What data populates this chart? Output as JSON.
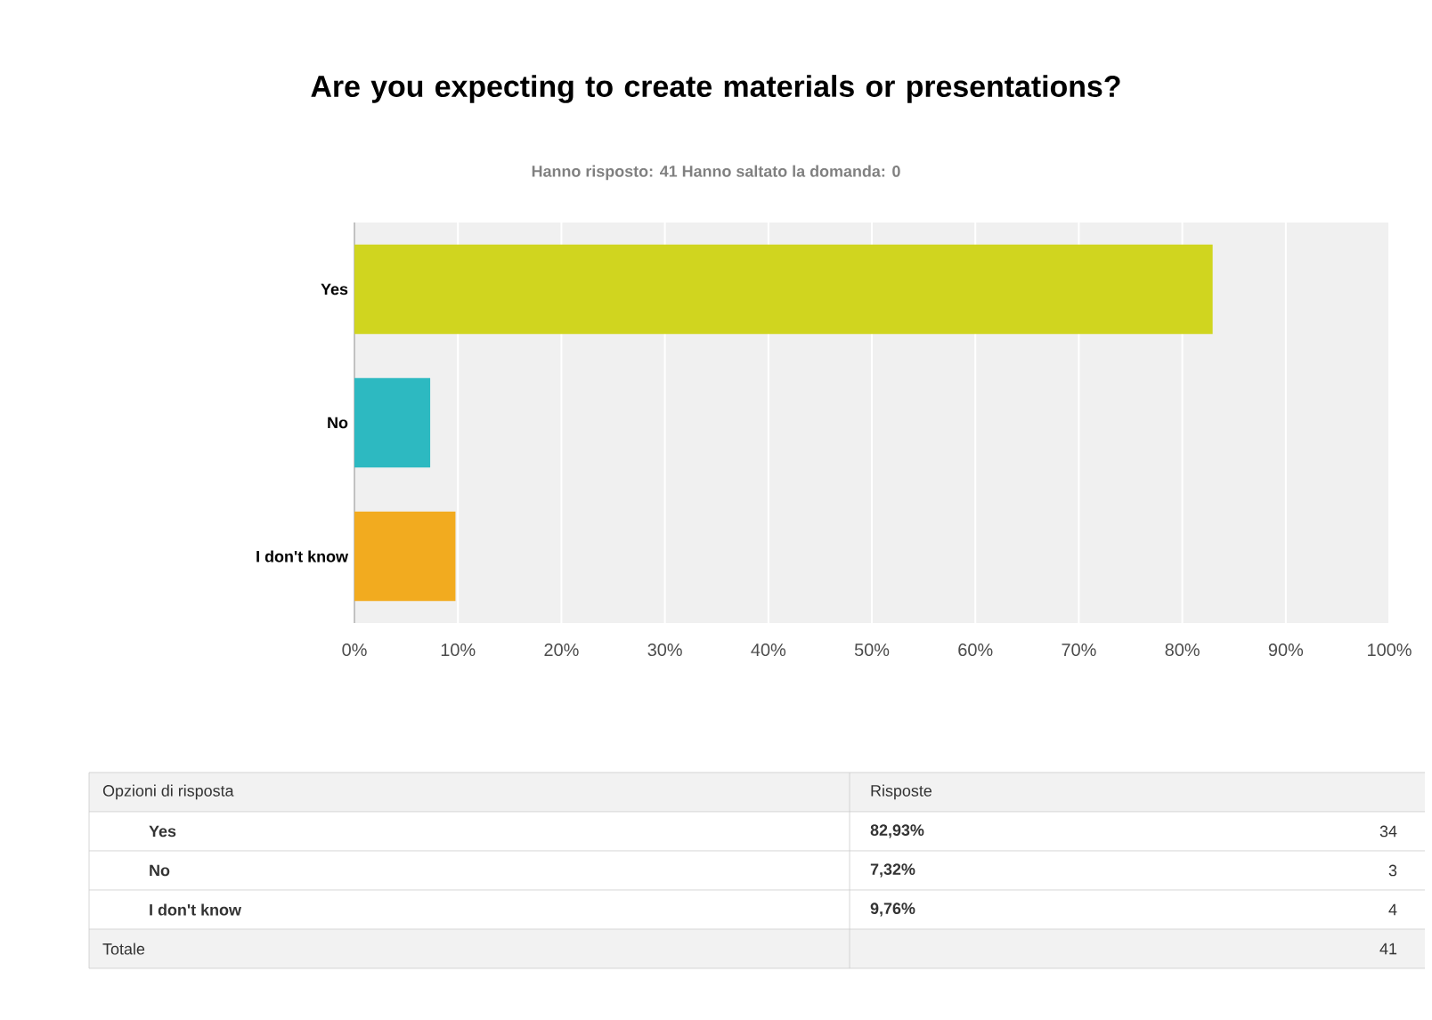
{
  "chart_data": {
    "type": "bar",
    "orientation": "horizontal",
    "title": "Are you expecting to create materials or presentations?",
    "subtitle": "Hanno risposto: 41    Hanno saltato la domanda: 0",
    "categories": [
      "Yes",
      "No",
      "I don't know"
    ],
    "values": [
      82.93,
      7.32,
      9.76
    ],
    "colors": [
      "#d0d51f",
      "#2db9c1",
      "#f2ab1f"
    ],
    "xlim": [
      0,
      100
    ],
    "xticks": [
      {
        "value": 0,
        "label": "0%"
      },
      {
        "value": 10,
        "label": "10%"
      },
      {
        "value": 20,
        "label": "20%"
      },
      {
        "value": 30,
        "label": "30%"
      },
      {
        "value": 40,
        "label": "40%"
      },
      {
        "value": 50,
        "label": "50%"
      },
      {
        "value": 60,
        "label": "60%"
      },
      {
        "value": 70,
        "label": "70%"
      },
      {
        "value": 80,
        "label": "80%"
      },
      {
        "value": 90,
        "label": "90%"
      },
      {
        "value": 100,
        "label": "100%"
      }
    ],
    "grid": "x",
    "annotations": [
      "Opzioni di risposta",
      "Risposte",
      "82,93%",
      "34",
      "7,32%",
      "3",
      "9,76%",
      "4",
      "Totale",
      "41"
    ]
  }
}
